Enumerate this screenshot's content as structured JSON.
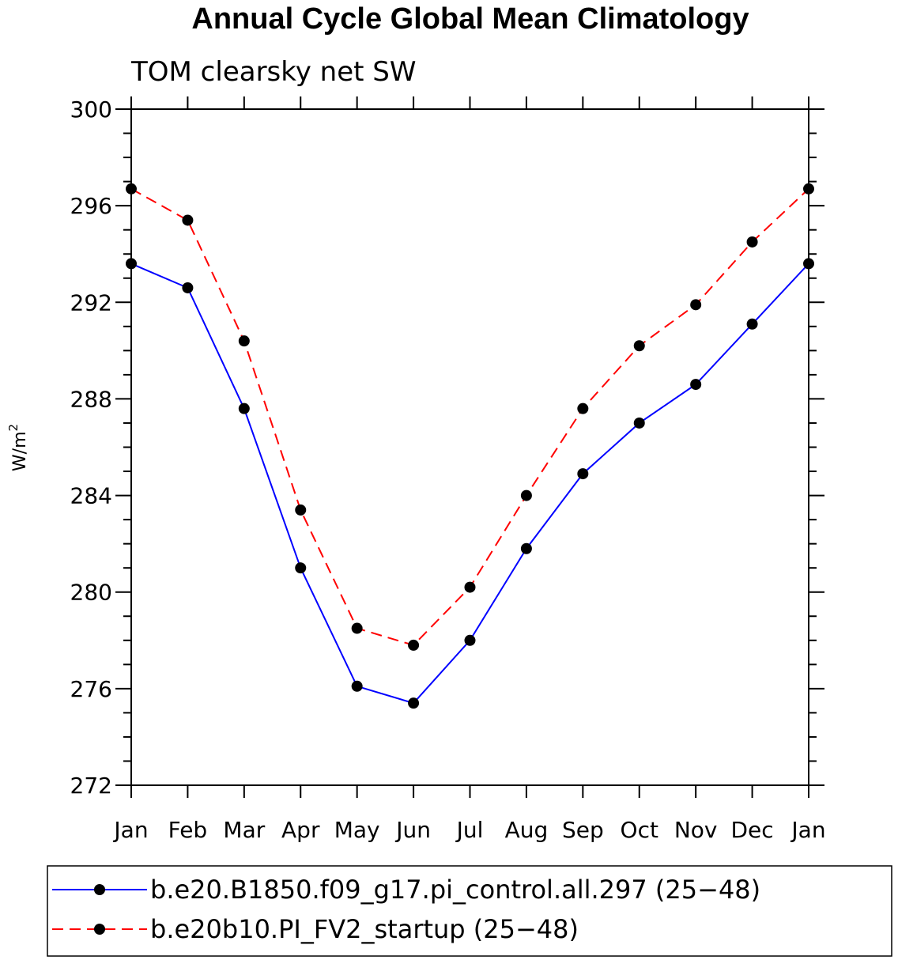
{
  "chart_data": {
    "type": "line",
    "title": "Annual Cycle Global Mean Climatology",
    "subtitle": "TOM clearsky net SW",
    "ylabel": "W/m",
    "ylabel_superscript": "2",
    "xlabel": "",
    "categories": [
      "Jan",
      "Feb",
      "Mar",
      "Apr",
      "May",
      "Jun",
      "Jul",
      "Aug",
      "Sep",
      "Oct",
      "Nov",
      "Dec",
      "Jan"
    ],
    "ylim": [
      272,
      300
    ],
    "yticks": [
      272,
      276,
      280,
      284,
      288,
      292,
      296,
      300
    ],
    "grid": false,
    "legend_position": "bottom",
    "series": [
      {
        "name": "b.e20.B1850.f09_g17.pi_control.all.297 (25−48)",
        "color": "#0000ff",
        "style": "solid",
        "values": [
          293.6,
          292.6,
          287.6,
          281.0,
          276.1,
          275.4,
          278.0,
          281.8,
          284.9,
          287.0,
          288.6,
          291.1,
          293.6
        ]
      },
      {
        "name": "b.e20b10.PI_FV2_startup (25−48)",
        "color": "#ff0000",
        "style": "dashed",
        "values": [
          296.7,
          295.4,
          290.4,
          283.4,
          278.5,
          277.8,
          280.2,
          284.0,
          287.6,
          290.2,
          291.9,
          294.5,
          296.7
        ]
      }
    ]
  }
}
